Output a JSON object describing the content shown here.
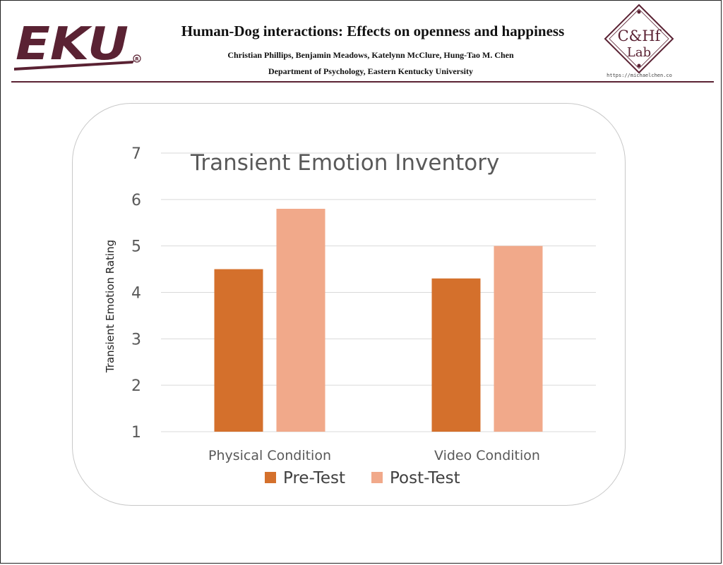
{
  "header": {
    "title": "Human-Dog interactions: Effects on openness and happiness",
    "authors": "Christian Phillips, Benjamin Meadows, Katelynn McClure, Hung-Tao M. Chen",
    "affiliation": "Department of Psychology, Eastern Kentucky University",
    "left_logo_text": "EKU",
    "right_logo_line1": "C&Hf",
    "right_logo_line2": "Lab",
    "right_logo_url": "https://michaelchen.co"
  },
  "colors": {
    "brand_maroon": "#5a2233",
    "pre_test": "#d4702c",
    "post_test": "#f1a98a"
  },
  "chart_data": {
    "type": "bar",
    "title": "Transient Emotion Inventory",
    "xlabel": "",
    "ylabel": "Transient Emotion Rating",
    "categories": [
      "Physical Condition",
      "Video Condition"
    ],
    "series": [
      {
        "name": "Pre-Test",
        "values": [
          4.5,
          4.3
        ]
      },
      {
        "name": "Post-Test",
        "values": [
          5.8,
          5.0
        ]
      }
    ],
    "ylim": [
      1,
      7
    ],
    "yticks": [
      "1",
      "2",
      "3",
      "4",
      "5",
      "6",
      "7"
    ],
    "grid": true,
    "legend": "bottom"
  }
}
